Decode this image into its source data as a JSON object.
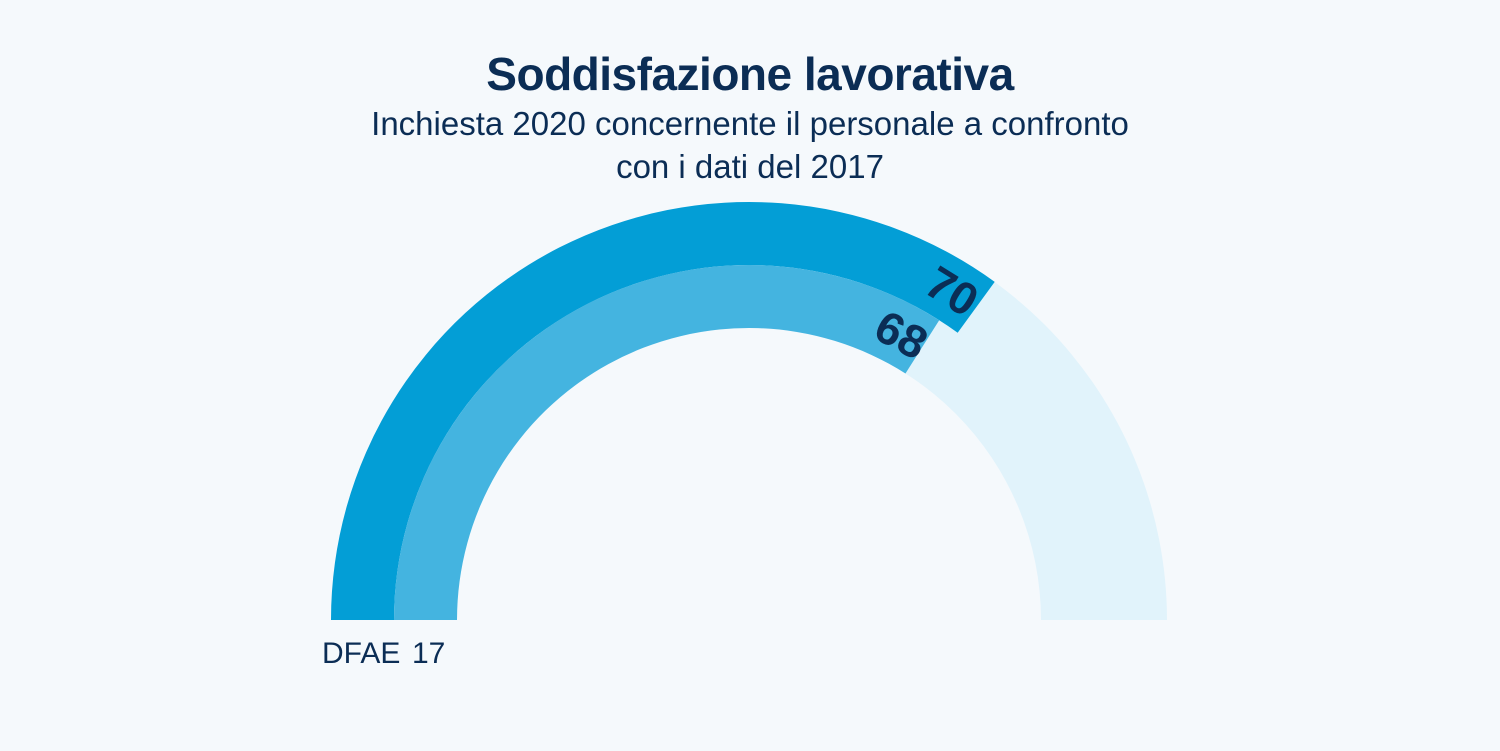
{
  "chart_data": {
    "type": "gauge",
    "title": "Soddisfazione lavorativa",
    "subtitle_lines": [
      "Inchiesta 2020 concernente il personale a confronto",
      "con i dati del 2017"
    ],
    "range": [
      0,
      100
    ],
    "series": [
      {
        "name": "",
        "value": 70,
        "label": "70",
        "color": "#039ed6"
      },
      {
        "name": "",
        "value": 68,
        "label": "68",
        "color": "#44b4e0"
      }
    ],
    "track_color": "#e1f3fb",
    "legend": {
      "organization": "DFAE",
      "year": "17"
    }
  }
}
